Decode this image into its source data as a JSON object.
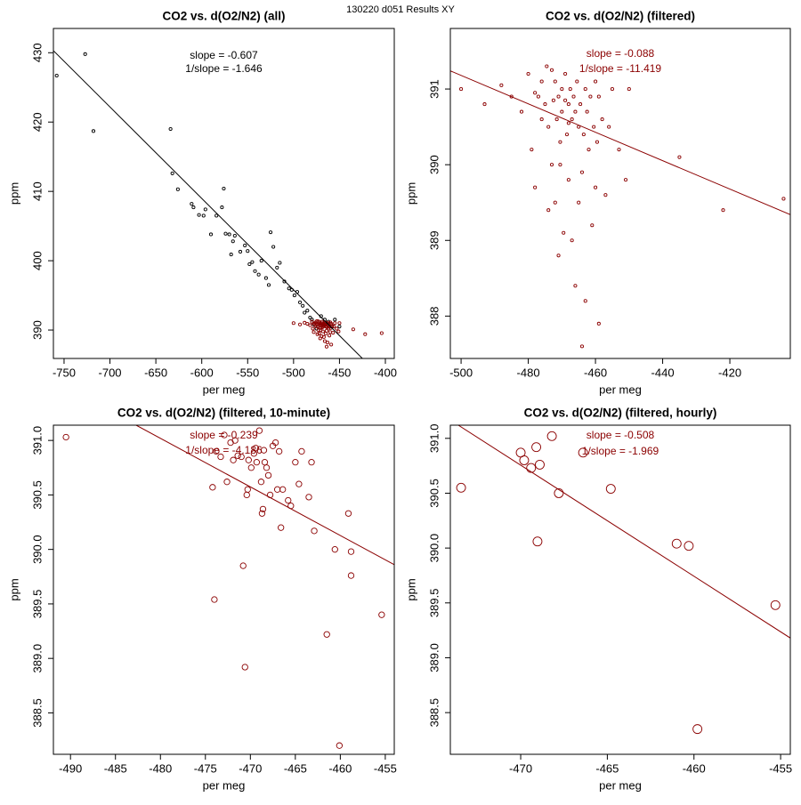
{
  "title": "130220   d051   Results XY",
  "chart_data": [
    {
      "type": "scatter",
      "title": "CO2 vs. d(O2/N2) (all)",
      "xlabel": "per meg",
      "ylabel": "ppm",
      "xlim": [
        -761.6,
        -390.3
      ],
      "ylim": [
        385.9,
        433.5
      ],
      "xticks": [
        -750,
        -700,
        -650,
        -600,
        -550,
        -500,
        -450,
        -400
      ],
      "yticks": [
        390,
        400,
        410,
        420,
        430
      ],
      "annotations": [
        "slope = -0.607",
        "1/slope = -1.646"
      ],
      "annotation_color": "#000000",
      "fit_line": {
        "color": "#000000",
        "x": [
          -761.6,
          -425
        ],
        "y": [
          430.3,
          385.9
        ]
      },
      "series": [
        {
          "color": "#000000",
          "x": [
            -758,
            -727,
            -718,
            -634,
            -632,
            -626,
            -611,
            -609,
            -603,
            -598,
            -596,
            -590,
            -584,
            -578,
            -576,
            -574,
            -570,
            -568,
            -566,
            -564,
            -558,
            -553,
            -550,
            -548,
            -545,
            -542,
            -538,
            -535,
            -530,
            -527,
            -525,
            -522,
            -518,
            -515,
            -510,
            -505,
            -502,
            -499,
            -496,
            -493,
            -490,
            -488,
            -485,
            -482,
            -480,
            -478,
            -475,
            -470,
            -466,
            -462,
            -458,
            -455,
            -450
          ],
          "y": [
            426.7,
            429.8,
            418.7,
            419.0,
            412.6,
            410.3,
            408.2,
            407.7,
            406.6,
            406.5,
            407.4,
            403.8,
            406.5,
            407.7,
            410.4,
            403.9,
            403.8,
            400.9,
            402.8,
            403.6,
            401.3,
            402.2,
            401.4,
            399.5,
            399.8,
            398.5,
            398.0,
            400.0,
            397.5,
            396.5,
            404.1,
            402.0,
            399.0,
            399.7,
            397.0,
            396.0,
            395.8,
            395.0,
            395.5,
            394.0,
            393.5,
            392.5,
            392.8,
            391.8,
            391.5,
            390.8,
            390.2,
            392.0,
            391.5,
            391.2,
            390.5,
            391.5,
            390.5
          ]
        },
        {
          "color": "#8b0000",
          "x": [
            -500,
            -493,
            -488,
            -485,
            -482,
            -480,
            -479,
            -478,
            -477,
            -476,
            -475,
            -474,
            -474,
            -473,
            -473,
            -472.5,
            -472,
            -472,
            -471.5,
            -471,
            -471,
            -470.5,
            -470,
            -470,
            -469.5,
            -469,
            -469,
            -468.5,
            -468,
            -468,
            -467.5,
            -467,
            -467,
            -466.5,
            -466,
            -466,
            -465.5,
            -465,
            -465,
            -464.5,
            -464,
            -464,
            -463.5,
            -463,
            -463,
            -462.5,
            -462,
            -461.5,
            -461,
            -460.5,
            -460,
            -460,
            -459.5,
            -459,
            -459,
            -458,
            -457,
            -456,
            -455,
            -453,
            -451,
            -450,
            -435,
            -422,
            -404,
            -478,
            -476,
            -474.5,
            -470.5,
            -468
          ],
          "y": [
            391.0,
            390.8,
            391.05,
            390.9,
            390.7,
            391.2,
            390.2,
            389.7,
            390.9,
            391.1,
            390.8,
            390.5,
            389.4,
            391.25,
            390.0,
            390.85,
            391.1,
            389.5,
            390.6,
            390.9,
            388.8,
            390.3,
            391.0,
            390.7,
            389.1,
            390.85,
            391.2,
            390.4,
            390.8,
            389.8,
            391.0,
            390.6,
            389.0,
            390.9,
            390.7,
            388.4,
            391.1,
            390.5,
            389.5,
            390.8,
            389.9,
            387.6,
            390.4,
            391.0,
            388.2,
            390.7,
            390.2,
            390.9,
            389.2,
            390.5,
            391.1,
            389.7,
            390.3,
            390.9,
            387.9,
            390.6,
            389.6,
            390.5,
            391.0,
            390.2,
            389.8,
            391.0,
            390.1,
            389.4,
            389.55,
            390.95,
            390.6,
            391.3,
            390.0,
            390.55
          ]
        }
      ]
    },
    {
      "type": "scatter",
      "title": "CO2 vs. d(O2/N2) (filtered)",
      "xlabel": "per meg",
      "ylabel": "ppm",
      "xlim": [
        -503.2,
        -402
      ],
      "ylim": [
        387.44,
        391.8
      ],
      "xticks": [
        -500,
        -480,
        -460,
        -440,
        -420
      ],
      "yticks": [
        388,
        389,
        390,
        391
      ],
      "annotations": [
        "slope = -0.088",
        "1/slope = -11.419"
      ],
      "annotation_color": "#8b0000",
      "fit_line": {
        "color": "#8b0000",
        "x": [
          -503.2,
          -402
        ],
        "y": [
          391.24,
          389.34
        ]
      },
      "series": [
        {
          "color": "#8b0000",
          "x": [
            -500,
            -493,
            -488,
            -485,
            -482,
            -480,
            -479,
            -478,
            -477,
            -476,
            -475,
            -474,
            -474,
            -473,
            -473,
            -472.5,
            -472,
            -472,
            -471.5,
            -471,
            -471,
            -470.5,
            -470,
            -470,
            -469.5,
            -469,
            -469,
            -468.5,
            -468,
            -468,
            -467.5,
            -467,
            -467,
            -466.5,
            -466,
            -466,
            -465.5,
            -465,
            -465,
            -464.5,
            -464,
            -464,
            -463.5,
            -463,
            -463,
            -462.5,
            -462,
            -461.5,
            -461,
            -460.5,
            -460,
            -460,
            -459.5,
            -459,
            -459,
            -458,
            -457,
            -456,
            -455,
            -453,
            -451,
            -450,
            -435,
            -422,
            -404,
            -478,
            -476,
            -474.5,
            -470.5,
            -468
          ],
          "y": [
            391.0,
            390.8,
            391.05,
            390.9,
            390.7,
            391.2,
            390.2,
            389.7,
            390.9,
            391.1,
            390.8,
            390.5,
            389.4,
            391.25,
            390.0,
            390.85,
            391.1,
            389.5,
            390.6,
            390.9,
            388.8,
            390.3,
            391.0,
            390.7,
            389.1,
            390.85,
            391.2,
            390.4,
            390.8,
            389.8,
            391.0,
            390.6,
            389.0,
            390.9,
            390.7,
            388.4,
            391.1,
            390.5,
            389.5,
            390.8,
            389.9,
            387.6,
            390.4,
            391.0,
            388.2,
            390.7,
            390.2,
            390.9,
            389.2,
            390.5,
            391.1,
            389.7,
            390.3,
            390.9,
            387.9,
            390.6,
            389.6,
            390.5,
            391.0,
            390.2,
            389.8,
            391.0,
            390.1,
            389.4,
            389.55,
            390.95,
            390.6,
            391.3,
            390.0,
            390.55
          ]
        }
      ]
    },
    {
      "type": "scatter",
      "title": "CO2 vs. d(O2/N2) (filtered, 10-minute)",
      "xlabel": "per meg",
      "ylabel": "ppm",
      "xlim": [
        -491.9,
        -454.0
      ],
      "ylim": [
        388.12,
        391.14
      ],
      "xticks": [
        -490,
        -485,
        -480,
        -475,
        -470,
        -465,
        -460,
        -455
      ],
      "yticks": [
        388.5,
        {
          "value": 389,
          "label": "389.0"
        },
        389.5,
        {
          "value": 390,
          "label": "390.0"
        },
        390.5,
        {
          "value": 391,
          "label": "391.0"
        }
      ],
      "annotations": [
        "slope = -0.239",
        "1/slope = -4.186"
      ],
      "annotation_color": "#8b0000",
      "fit_line": {
        "color": "#8b0000",
        "x": [
          -482.7,
          -454.0
        ],
        "y": [
          391.14,
          389.86
        ]
      },
      "series": [
        {
          "color": "#8b0000",
          "x": [
            -490.5,
            -474.2,
            -474.0,
            -473.8,
            -473.3,
            -472.9,
            -472.6,
            -472.2,
            -471.9,
            -471.7,
            -471.4,
            -471.0,
            -470.8,
            -470.6,
            -470.4,
            -470.3,
            -470.2,
            -469.9,
            -469.6,
            -469.4,
            -469.3,
            -469.0,
            -468.8,
            -468.7,
            -468.6,
            -468.5,
            -468.4,
            -468.2,
            -468.0,
            -467.8,
            -467.5,
            -467.2,
            -467.0,
            -466.8,
            -466.6,
            -466.4,
            -465.8,
            -465.5,
            -465.0,
            -464.6,
            -464.3,
            -463.5,
            -463.2,
            -462.9,
            -461.5,
            -460.6,
            -460.1,
            -459.1,
            -458.8,
            -458.8,
            -455.4
          ],
          "y": [
            391.03,
            390.57,
            389.54,
            390.9,
            390.85,
            391.05,
            390.62,
            390.98,
            390.82,
            391.0,
            390.86,
            390.85,
            389.85,
            388.92,
            390.5,
            390.55,
            390.82,
            390.75,
            390.88,
            390.93,
            390.8,
            391.09,
            390.62,
            390.33,
            390.37,
            390.91,
            390.8,
            390.75,
            390.68,
            390.5,
            390.95,
            390.98,
            390.55,
            390.9,
            390.2,
            390.55,
            390.45,
            390.4,
            390.8,
            390.6,
            390.9,
            390.48,
            390.8,
            390.17,
            389.22,
            390.0,
            388.2,
            390.33,
            389.98,
            389.76,
            389.4
          ]
        }
      ]
    },
    {
      "type": "scatter",
      "title": "CO2 vs. d(O2/N2) (filtered, hourly)",
      "xlabel": "per meg",
      "ylabel": "ppm",
      "xlim": [
        -474.06,
        -454.44
      ],
      "ylim": [
        388.12,
        391.12
      ],
      "xticks": [
        -470,
        -465,
        -460,
        -455
      ],
      "yticks": [
        388.5,
        {
          "value": 389,
          "label": "389.0"
        },
        389.5,
        {
          "value": 390,
          "label": "390.0"
        },
        390.5,
        {
          "value": 391,
          "label": "391.0"
        }
      ],
      "annotations": [
        "slope = -0.508",
        "1/slope = -1.969"
      ],
      "annotation_color": "#8b0000",
      "fit_line": {
        "color": "#8b0000",
        "x": [
          -473.6,
          -454.44
        ],
        "y": [
          391.12,
          389.18
        ]
      },
      "series": [
        {
          "color": "#8b0000",
          "x": [
            -473.44,
            -470.0,
            -469.8,
            -469.4,
            -469.1,
            -468.9,
            -469.03,
            -468.2,
            -467.8,
            -466.4,
            -464.8,
            -461.0,
            -460.3,
            -459.8,
            -455.3
          ],
          "y": [
            390.55,
            390.87,
            390.8,
            390.73,
            390.92,
            390.76,
            390.06,
            391.02,
            390.5,
            390.87,
            390.54,
            390.04,
            390.02,
            388.35,
            389.48
          ]
        }
      ]
    }
  ]
}
